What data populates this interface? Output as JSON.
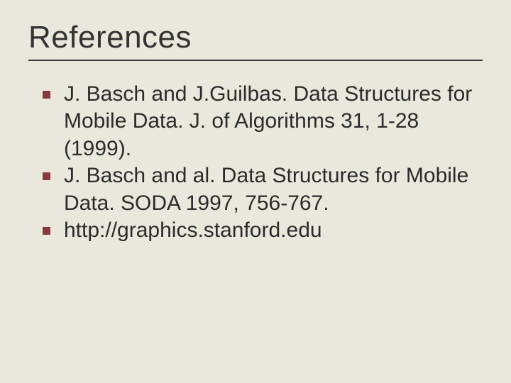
{
  "slide": {
    "title": "References",
    "bullet_color": "#8a3a3a",
    "background_color": "#eae7dc",
    "title_fontsize": 44,
    "body_fontsize": 30,
    "rule_color": "#3a3a3a",
    "items": [
      "J. Basch and J.Guilbas. Data Structures for Mobile Data. J. of Algorithms 31, 1-28 (1999).",
      "J. Basch and al. Data Structures for Mobile Data. SODA 1997, 756-767.",
      "http://graphics.stanford.edu"
    ]
  }
}
